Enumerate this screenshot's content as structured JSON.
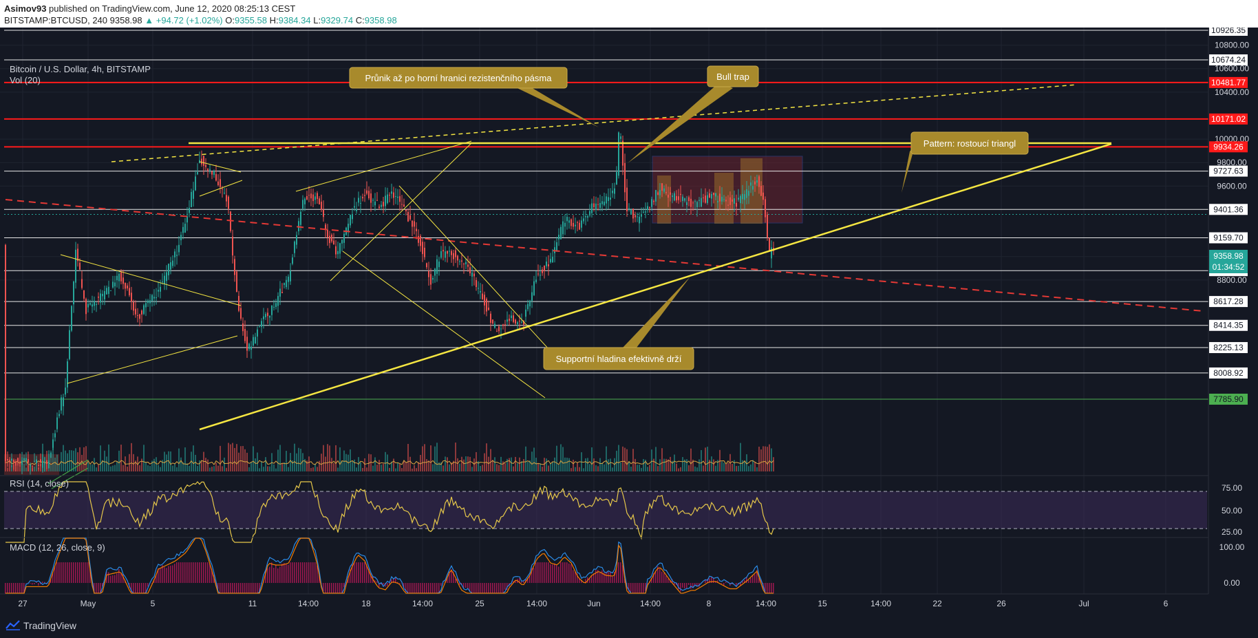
{
  "header": {
    "author": "Asimov93",
    "published": "published on TradingView.com, June 12, 2020 08:25:13 CEST",
    "symbol": "BITSTAMP:BTCUSD, 240",
    "last": "9358.98",
    "change": "+94.72 (+1.02%)",
    "o_label": "O:",
    "o": "9355.58",
    "h_label": "H:",
    "h": "9384.34",
    "l_label": "L:",
    "l": "9329.74",
    "c_label": "C:",
    "c": "9358.98"
  },
  "legend": {
    "title": "Bitcoin / U.S. Dollar, 4h, BITSTAMP",
    "vol": "Vol (20)",
    "rsi": "RSI (14, close)",
    "macd": "MACD (12, 26, close, 9)"
  },
  "annotations": [
    "Průnik až po horní hranici rezistenčního pásma",
    "Bull trap",
    "Pattern: rostoucí triangl",
    "Supportní hladina efektivně drží"
  ],
  "footer": {
    "brand": "TradingView"
  },
  "colors": {
    "bg": "#141823",
    "up": "#26a69a",
    "down": "#ef5350",
    "yellow": "#f5e642",
    "red": "#ff1a1a",
    "callout": "#a88a2c"
  },
  "chart_data": [
    {
      "type": "line",
      "title": "Bitcoin / U.S. Dollar, 4h, BITSTAMP",
      "ylim": [
        7700,
        10980
      ],
      "yticks": [
        10800,
        10600,
        10400,
        10000,
        9800,
        9600,
        9000,
        8800
      ],
      "x_tick_labels": [
        "27",
        "May",
        "5",
        "11",
        "14:00",
        "18",
        "14:00",
        "25",
        "14:00",
        "Jun",
        "14:00",
        "8",
        "14:00",
        "15",
        "14:00",
        "22",
        "26",
        "Jul",
        "6"
      ],
      "horizontal_levels": [
        {
          "value": 10926.35,
          "label": "10926.35",
          "style": "white"
        },
        {
          "value": 10674.24,
          "label": "10674.24",
          "style": "white"
        },
        {
          "value": 10481.77,
          "label": "10481.77",
          "style": "red"
        },
        {
          "value": 10171.02,
          "label": "10171.02",
          "style": "red"
        },
        {
          "value": 9934.26,
          "label": "9934.26",
          "style": "red"
        },
        {
          "value": 9727.63,
          "label": "9727.63",
          "style": "white"
        },
        {
          "value": 9401.36,
          "label": "9401.36",
          "style": "white"
        },
        {
          "value": 9159.7,
          "label": "9159.70",
          "style": "white"
        },
        {
          "value": 8880.4,
          "label": "8880.40",
          "style": "white"
        },
        {
          "value": 8617.28,
          "label": "8617.28",
          "style": "white"
        },
        {
          "value": 8414.35,
          "label": "8414.35",
          "style": "white"
        },
        {
          "value": 8225.13,
          "label": "8225.13",
          "style": "white"
        },
        {
          "value": 8008.92,
          "label": "8008.92",
          "style": "white"
        },
        {
          "value": 7785.9,
          "label": "7785.90",
          "style": "green"
        }
      ],
      "last_price": {
        "value": 9358.98,
        "label": "9358.98",
        "countdown": "01:34:52"
      }
    },
    {
      "type": "line",
      "title": "RSI (14, close)",
      "yticks": [
        75,
        50,
        25
      ],
      "ylim": [
        20,
        80
      ]
    },
    {
      "type": "bar",
      "title": "MACD (12, 26, close, 9)",
      "yticks": [
        100,
        0
      ]
    }
  ]
}
